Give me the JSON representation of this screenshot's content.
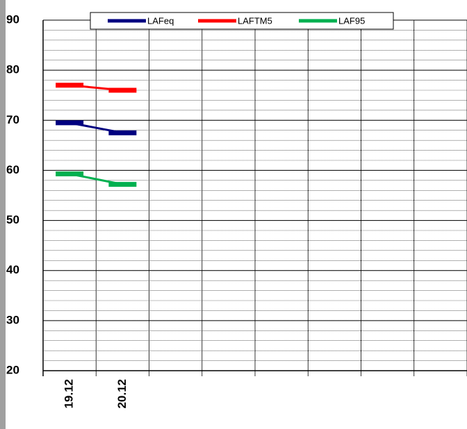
{
  "chart_data": {
    "type": "line",
    "categories": [
      "19.12",
      "20.12",
      null,
      null,
      null,
      null,
      null,
      null
    ],
    "series": [
      {
        "name": "LAFeq",
        "color": "#000080",
        "values": [
          69.5,
          67.5,
          null,
          null,
          null,
          null,
          null,
          null
        ]
      },
      {
        "name": "LAFTM5",
        "color": "#ff0000",
        "values": [
          77,
          76,
          null,
          null,
          null,
          null,
          null,
          null
        ]
      },
      {
        "name": "LAF95",
        "color": "#00b050",
        "values": [
          59.3,
          57.2,
          null,
          null,
          null,
          null,
          null,
          null
        ]
      }
    ],
    "ylim": [
      20,
      90
    ],
    "yticks": [
      20,
      30,
      40,
      50,
      60,
      70,
      80,
      90
    ],
    "minor_step": 2,
    "grid": true,
    "legend": "top"
  }
}
